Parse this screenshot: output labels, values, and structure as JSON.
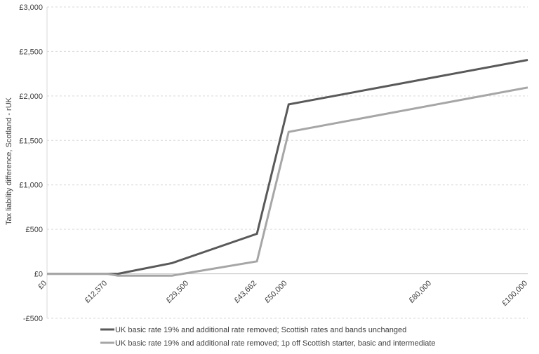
{
  "chart_data": {
    "type": "line",
    "title": "",
    "xlabel": "",
    "ylabel": "Tax liability difference, Scotland - rUK",
    "xlim": [
      0,
      100000
    ],
    "ylim": [
      -500,
      3000
    ],
    "grid": true,
    "legend_position": "bottom",
    "y_ticks": [
      {
        "value": -500,
        "label": "-£500"
      },
      {
        "value": 0,
        "label": "£0"
      },
      {
        "value": 500,
        "label": "£500"
      },
      {
        "value": 1000,
        "label": "£1,000"
      },
      {
        "value": 1500,
        "label": "£1,500"
      },
      {
        "value": 2000,
        "label": "£2,000"
      },
      {
        "value": 2500,
        "label": "£2,500"
      },
      {
        "value": 3000,
        "label": "£3,000"
      }
    ],
    "x_ticks": [
      {
        "value": 0,
        "label": "£0"
      },
      {
        "value": 12570,
        "label": "£12,570"
      },
      {
        "value": 29500,
        "label": "£29,500"
      },
      {
        "value": 43662,
        "label": "£43,662"
      },
      {
        "value": 50000,
        "label": "£50,000"
      },
      {
        "value": 80000,
        "label": "£80,000"
      },
      {
        "value": 100000,
        "label": "£100,000"
      }
    ],
    "series": [
      {
        "name": "UK basic rate 19% and additional rate removed; Scottish rates and bands unchanged",
        "color": "#595959",
        "points": [
          {
            "x": 0,
            "y": 0
          },
          {
            "x": 12570,
            "y": 0
          },
          {
            "x": 14733,
            "y": 0
          },
          {
            "x": 26000,
            "y": 120
          },
          {
            "x": 43662,
            "y": 450
          },
          {
            "x": 50270,
            "y": 1905
          },
          {
            "x": 100000,
            "y": 2405
          }
        ]
      },
      {
        "name": "UK basic rate 19% and additional rate removed; 1p off Scottish starter, basic and intermediate",
        "color": "#a6a6a6",
        "points": [
          {
            "x": 0,
            "y": 0
          },
          {
            "x": 12570,
            "y": 0
          },
          {
            "x": 14733,
            "y": -21
          },
          {
            "x": 26000,
            "y": -21
          },
          {
            "x": 43662,
            "y": 140
          },
          {
            "x": 50270,
            "y": 1595
          },
          {
            "x": 100000,
            "y": 2095
          }
        ]
      }
    ]
  }
}
